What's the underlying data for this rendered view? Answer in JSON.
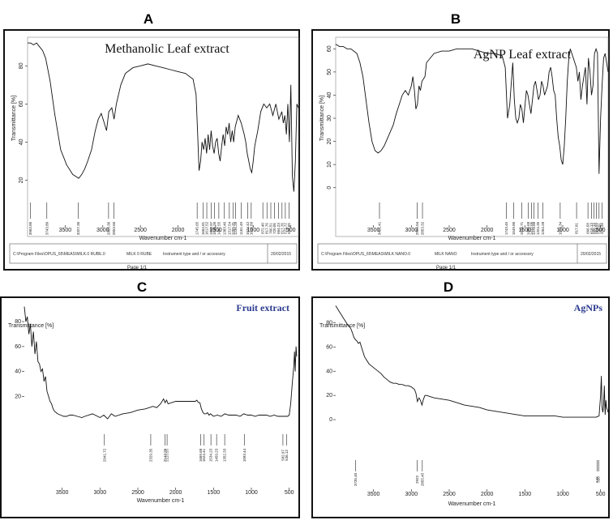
{
  "panel_letters": {
    "a": "A",
    "b": "B",
    "c": "C",
    "d": "D"
  },
  "chart_data": [
    {
      "panel": "A",
      "type": "line",
      "title": "Methanolic Leaf extract",
      "xlabel": "Wavenumber cm-1",
      "ylabel": "Transmittance [%]",
      "xlim": [
        4000,
        400
      ],
      "ylim": [
        10,
        95
      ],
      "x_ticks": [
        3500,
        3000,
        2500,
        2000,
        1500,
        1000,
        500
      ],
      "y_ticks": [
        20,
        40,
        60,
        80
      ],
      "x": [
        4000,
        3960,
        3920,
        3880,
        3840,
        3800,
        3760,
        3700,
        3640,
        3560,
        3480,
        3400,
        3360,
        3320,
        3280,
        3240,
        3200,
        3150,
        3100,
        3060,
        3020,
        2980,
        2950,
        2920,
        2880,
        2850,
        2820,
        2760,
        2700,
        2600,
        2500,
        2400,
        2300,
        2200,
        2100,
        2000,
        1900,
        1800,
        1760,
        1740,
        1720,
        1700,
        1680,
        1660,
        1640,
        1620,
        1600,
        1580,
        1560,
        1540,
        1520,
        1500,
        1480,
        1460,
        1440,
        1420,
        1400,
        1380,
        1360,
        1340,
        1320,
        1300,
        1280,
        1260,
        1240,
        1200,
        1160,
        1120,
        1100,
        1080,
        1060,
        1040,
        1020,
        1000,
        980,
        940,
        900,
        860,
        820,
        780,
        740,
        700,
        660,
        620,
        600,
        580,
        560,
        540,
        520,
        500,
        480,
        460,
        440,
        420,
        400
      ],
      "y": [
        92,
        92,
        91,
        92,
        90,
        88,
        84,
        72,
        55,
        36,
        28,
        23,
        22,
        21,
        23,
        26,
        30,
        36,
        46,
        52,
        55,
        50,
        46,
        56,
        58,
        52,
        60,
        70,
        76,
        79,
        80,
        81,
        80,
        79,
        78,
        77,
        76,
        73,
        65,
        45,
        25,
        30,
        40,
        36,
        42,
        34,
        44,
        36,
        46,
        38,
        34,
        40,
        42,
        34,
        30,
        38,
        44,
        38,
        48,
        44,
        50,
        40,
        46,
        40,
        48,
        54,
        50,
        44,
        40,
        34,
        30,
        26,
        24,
        30,
        38,
        46,
        56,
        60,
        58,
        60,
        54,
        60,
        52,
        56,
        50,
        54,
        44,
        60,
        40,
        70,
        22,
        14,
        30,
        60,
        58
      ],
      "peak_labels": [
        "3963.86",
        "3743.80",
        "3327.36",
        "2923.36",
        "2853.66",
        "1745.65",
        "1664.81",
        "1617.52",
        "1558.97",
        "1516.26",
        "1457.55",
        "1383.46",
        "1317.54",
        "1265.31",
        "1236.28",
        "1161.49",
        "1074.42",
        "1026.89",
        "872.40",
        "817.76",
        "766.51",
        "720.05",
        "664.23",
        "617.76",
        "573.72",
        "524.65"
      ],
      "peak_x": [
        3963.86,
        3743.8,
        3327.36,
        2923.36,
        2853.66,
        1745.65,
        1664.81,
        1617.52,
        1558.97,
        1516.26,
        1457.55,
        1383.46,
        1317.54,
        1265.31,
        1236.28,
        1161.49,
        1074.42,
        1026.89,
        872.4,
        817.76,
        766.51,
        720.05,
        664.23,
        617.76,
        573.72,
        524.65
      ],
      "footer": {
        "path": "C:\\Program Files\\OPUS_65\\MEAS\\MILK.0 RUBE.0",
        "sample": "MILK 0 RUBE",
        "instrument": "Instrument type and / or accessory",
        "date": "20/02/2015",
        "page": "Page 1/1"
      }
    },
    {
      "panel": "B",
      "type": "line",
      "title": "AgNP Leaf extract",
      "xlabel": "Wavenumber cm-1",
      "ylabel": "Transmittance [%]",
      "xlim": [
        4000,
        400
      ],
      "ylim": [
        -5,
        65
      ],
      "x_ticks": [
        3500,
        3000,
        2500,
        2000,
        1500,
        1000,
        500
      ],
      "y_ticks": [
        0,
        10,
        20,
        30,
        40,
        50,
        60
      ],
      "x": [
        4000,
        3950,
        3900,
        3850,
        3800,
        3760,
        3720,
        3680,
        3640,
        3600,
        3560,
        3520,
        3480,
        3440,
        3400,
        3360,
        3320,
        3280,
        3240,
        3200,
        3160,
        3120,
        3080,
        3040,
        3000,
        2980,
        2960,
        2940,
        2920,
        2900,
        2880,
        2860,
        2840,
        2820,
        2800,
        2700,
        2600,
        2500,
        2400,
        2300,
        2200,
        2100,
        2000,
        1900,
        1800,
        1760,
        1730,
        1700,
        1680,
        1660,
        1640,
        1620,
        1600,
        1580,
        1560,
        1540,
        1520,
        1500,
        1480,
        1460,
        1440,
        1420,
        1400,
        1380,
        1360,
        1340,
        1320,
        1300,
        1280,
        1260,
        1240,
        1220,
        1200,
        1180,
        1160,
        1140,
        1120,
        1100,
        1080,
        1060,
        1040,
        1020,
        1000,
        980,
        960,
        940,
        920,
        900,
        880,
        860,
        840,
        820,
        800,
        780,
        760,
        740,
        720,
        700,
        680,
        660,
        640,
        620,
        600,
        580,
        560,
        540,
        520,
        500,
        480,
        460,
        440,
        420,
        400
      ],
      "y": [
        62,
        61,
        61,
        60,
        60,
        59,
        58,
        54,
        48,
        38,
        28,
        20,
        16,
        15,
        16,
        18,
        21,
        24,
        27,
        32,
        36,
        40,
        42,
        40,
        44,
        48,
        42,
        34,
        36,
        44,
        42,
        46,
        47,
        48,
        54,
        58,
        59,
        59,
        60,
        60,
        60,
        59,
        58,
        58,
        57,
        52,
        30,
        36,
        45,
        54,
        38,
        30,
        28,
        30,
        36,
        34,
        28,
        35,
        42,
        40,
        36,
        32,
        38,
        44,
        46,
        42,
        38,
        40,
        46,
        44,
        40,
        42,
        44,
        50,
        52,
        48,
        42,
        40,
        30,
        22,
        18,
        12,
        10,
        18,
        30,
        46,
        56,
        60,
        58,
        56,
        54,
        52,
        46,
        50,
        38,
        44,
        48,
        52,
        36,
        56,
        50,
        40,
        44,
        58,
        60,
        58,
        6,
        30,
        44,
        56,
        58,
        54,
        50
      ],
      "peak_labels": [
        "3421.41",
        "2924.04",
        "2853.32",
        "1743.45",
        "1649.86",
        "1539.71",
        "1456.68",
        "1412.05",
        "1378.88",
        "1324.35",
        "1264.28",
        "1033.34",
        "817.01",
        "666.58",
        "618.13",
        "588.14",
        "554.59",
        "520.01",
        "479.26"
      ],
      "peak_x": [
        3421.41,
        2924.04,
        2853.32,
        1743.45,
        1649.86,
        1539.71,
        1456.68,
        1412.05,
        1378.88,
        1324.35,
        1264.28,
        1033.34,
        817.01,
        666.58,
        618.13,
        588.14,
        554.59,
        520.01,
        479.26
      ],
      "footer": {
        "path": "C:\\Program Files\\OPUS_65\\MEAS\\MILK NANO.0",
        "sample": "MILK NANO",
        "instrument": "Instrument type and / or accessory",
        "date": "20/02/2015",
        "page": "Page 1/1"
      }
    },
    {
      "panel": "C",
      "type": "line",
      "title": "Fruit extract",
      "xlabel": "Wavenumber cm-1",
      "ylabel": "Transmittance [%]",
      "xlim": [
        4000,
        400
      ],
      "ylim": [
        -22,
        95
      ],
      "x_ticks": [
        3500,
        3000,
        2500,
        2000,
        1500,
        1000,
        500
      ],
      "y_ticks": [
        20,
        40,
        60,
        80
      ],
      "x": [
        4000,
        3980,
        3960,
        3940,
        3920,
        3900,
        3880,
        3860,
        3840,
        3820,
        3800,
        3780,
        3760,
        3740,
        3720,
        3700,
        3680,
        3660,
        3640,
        3620,
        3600,
        3560,
        3520,
        3480,
        3440,
        3400,
        3360,
        3300,
        3240,
        3200,
        3100,
        3000,
        2950,
        2900,
        2850,
        2800,
        2700,
        2600,
        2500,
        2400,
        2300,
        2250,
        2200,
        2160,
        2140,
        2120,
        2100,
        2000,
        1900,
        1800,
        1740,
        1720,
        1700,
        1680,
        1660,
        1640,
        1620,
        1600,
        1580,
        1560,
        1540,
        1500,
        1450,
        1400,
        1350,
        1300,
        1250,
        1200,
        1150,
        1100,
        1050,
        1000,
        950,
        900,
        850,
        800,
        750,
        700,
        650,
        600,
        560,
        520,
        500,
        480,
        460,
        440,
        430,
        420,
        410,
        400
      ],
      "y": [
        92,
        80,
        84,
        70,
        78,
        60,
        72,
        54,
        64,
        48,
        46,
        40,
        42,
        32,
        36,
        24,
        20,
        16,
        14,
        10,
        8,
        6,
        5,
        4,
        4,
        5,
        5,
        4,
        3,
        4,
        6,
        3,
        5,
        2,
        6,
        4,
        6,
        7,
        9,
        10,
        12,
        11,
        14,
        18,
        15,
        17,
        14,
        16,
        16,
        16,
        16,
        17,
        15,
        15,
        10,
        7,
        6,
        6,
        7,
        5,
        6,
        4,
        5,
        4,
        6,
        5,
        5,
        5,
        4,
        6,
        5,
        5,
        4,
        5,
        5,
        5,
        4,
        5,
        4,
        4,
        4,
        4,
        5,
        14,
        30,
        44,
        56,
        40,
        60,
        52
      ],
      "peak_labels": [
        "2941.72",
        "2329.35",
        "2143.26",
        "2113.55",
        "1669.68",
        "1624.41",
        "1534.23",
        "1459.23",
        "1352.33",
        "1093.44",
        "582.97",
        "536.12"
      ],
      "peak_x": [
        2941.72,
        2329.35,
        2143.26,
        2113.55,
        1669.68,
        1624.41,
        1534.23,
        1459.23,
        1352.33,
        1093.44,
        582.97,
        536.12
      ],
      "footer": {}
    },
    {
      "panel": "D",
      "type": "line",
      "title": "AgNPs",
      "xlabel": "Wavenumber cm-1",
      "ylabel": "Transmittance [%]",
      "xlim": [
        4000,
        400
      ],
      "ylim": [
        -20,
        95
      ],
      "x_ticks": [
        3500,
        3000,
        2500,
        2000,
        1500,
        1000,
        500
      ],
      "y_ticks": [
        0,
        20,
        40,
        60,
        80
      ],
      "x": [
        4000,
        3980,
        3960,
        3940,
        3920,
        3900,
        3880,
        3860,
        3840,
        3820,
        3800,
        3780,
        3760,
        3740,
        3720,
        3700,
        3680,
        3660,
        3640,
        3620,
        3600,
        3560,
        3520,
        3480,
        3440,
        3400,
        3360,
        3320,
        3280,
        3240,
        3200,
        3160,
        3120,
        3080,
        3040,
        3000,
        2960,
        2940,
        2920,
        2900,
        2880,
        2860,
        2840,
        2820,
        2800,
        2700,
        2600,
        2500,
        2400,
        2300,
        2200,
        2100,
        2000,
        1900,
        1800,
        1700,
        1600,
        1500,
        1400,
        1300,
        1200,
        1100,
        1000,
        900,
        800,
        700,
        600,
        560,
        520,
        500,
        490,
        480,
        470,
        460,
        450,
        440,
        430,
        420,
        410,
        400
      ],
      "y": [
        94,
        92,
        90,
        88,
        86,
        84,
        82,
        80,
        78,
        77,
        75,
        72,
        68,
        66,
        65,
        63,
        64,
        60,
        56,
        52,
        50,
        46,
        44,
        42,
        40,
        38,
        35,
        33,
        31,
        30,
        30,
        29,
        29,
        28,
        28,
        27,
        25,
        22,
        15,
        18,
        16,
        12,
        17,
        20,
        20,
        18,
        17,
        16,
        14,
        12,
        11,
        10,
        8,
        7,
        6,
        5,
        4,
        3,
        3,
        3,
        3,
        3,
        2,
        2,
        2,
        2,
        2,
        2,
        3,
        20,
        36,
        10,
        6,
        12,
        28,
        4,
        16,
        10,
        8,
        6
      ],
      "peak_labels": [
        "3735.40",
        "2922",
        "2855.45",
        "545",
        "526"
      ],
      "peak_x": [
        3735.4,
        2922,
        2855.45,
        545,
        526
      ],
      "footer": {}
    }
  ]
}
